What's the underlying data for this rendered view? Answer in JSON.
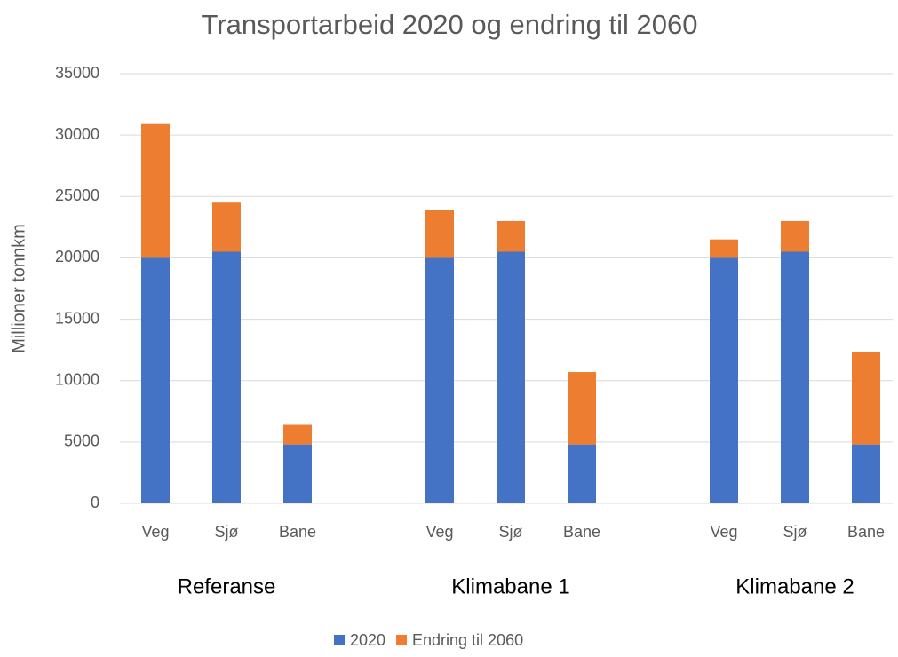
{
  "chart_data": {
    "type": "bar",
    "stacked": true,
    "title": "Transportarbeid 2020 og endring til 2060",
    "y_label": "Millioner tonnkm",
    "categories": [
      "Veg",
      "Sjø",
      "Bane",
      null,
      "Veg",
      "Sjø",
      "Bane",
      null,
      "Veg",
      "Sjø",
      "Bane"
    ],
    "groups": [
      "Referanse",
      "Klimabane 1",
      "Klimabane 2"
    ],
    "series": [
      {
        "name": "2020",
        "color": "#4472c4",
        "values": [
          20000,
          20500,
          4800,
          null,
          20000,
          20500,
          4800,
          null,
          20000,
          20500,
          4800
        ]
      },
      {
        "name": "Endring til 2060",
        "color": "#ed7d31",
        "values": [
          10900,
          4000,
          1600,
          null,
          3900,
          2500,
          5900,
          null,
          1500,
          2500,
          7500
        ]
      }
    ],
    "ylim": [
      0,
      35000
    ],
    "yticks": [
      0,
      5000,
      10000,
      15000,
      20000,
      25000,
      30000,
      35000
    ],
    "grid": true,
    "legend": "bottom"
  }
}
